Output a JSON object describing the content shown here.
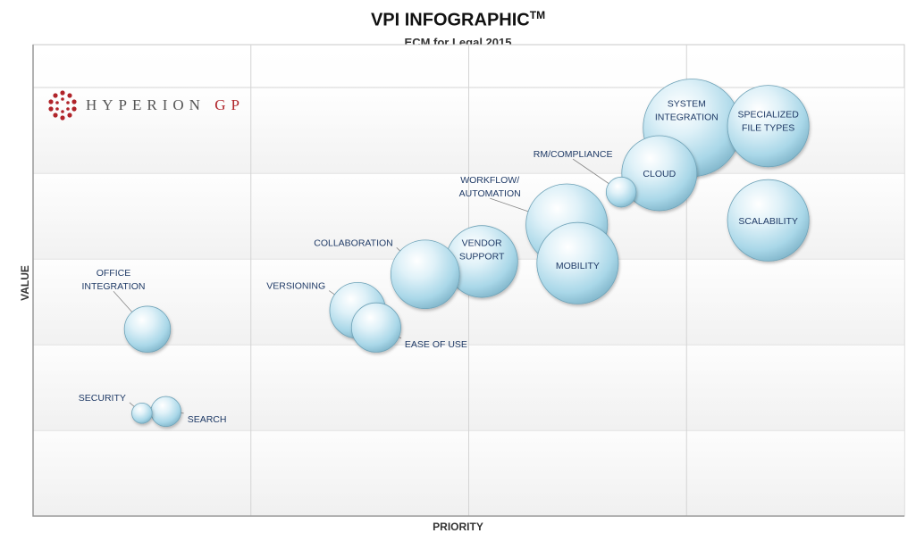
{
  "chart_data": {
    "type": "bubble",
    "title": "VPI INFOGRAPHIC",
    "title_superscript": "TM",
    "subtitle": "ECM for Legal 2015",
    "xlabel": "PRIORITY",
    "ylabel": "VALUE",
    "grid": true,
    "bubble_color": "#a9d7e8",
    "label_color": "#1f3a66",
    "logo": {
      "text_main": "HYPERION",
      "text_accent": "GP",
      "accent_color": "#b0242a"
    },
    "points": [
      {
        "label": "SECURITY",
        "x": 1.0,
        "y": 1.2,
        "size": 0.15
      },
      {
        "label": "SEARCH",
        "x": 1.22,
        "y": 1.22,
        "size": 0.3
      },
      {
        "label": "OFFICE INTEGRATION",
        "x": 1.05,
        "y": 2.18,
        "size": 0.55
      },
      {
        "label": "VERSIONING",
        "x": 2.98,
        "y": 2.4,
        "size": 0.7
      },
      {
        "label": "EASE OF USE",
        "x": 3.15,
        "y": 2.2,
        "size": 0.6
      },
      {
        "label": "COLLABORATION",
        "x": 3.6,
        "y": 2.82,
        "size": 0.9
      },
      {
        "label": "VENDOR SUPPORT",
        "x": 4.12,
        "y": 2.97,
        "size": 0.95
      },
      {
        "label": "WORKFLOW/ AUTOMATION",
        "x": 4.9,
        "y": 3.4,
        "size": 1.1
      },
      {
        "label": "MOBILITY",
        "x": 5.0,
        "y": 2.95,
        "size": 1.1
      },
      {
        "label": "RM/COMPLIANCE",
        "x": 5.4,
        "y": 3.78,
        "size": 0.3
      },
      {
        "label": "CLOUD",
        "x": 5.75,
        "y": 4.0,
        "size": 1.0
      },
      {
        "label": "SYSTEM INTEGRATION",
        "x": 6.05,
        "y": 4.53,
        "size": 1.35
      },
      {
        "label": "SPECIALIZED FILE TYPES",
        "x": 6.75,
        "y": 4.55,
        "size": 1.1
      },
      {
        "label": "SCALABILITY",
        "x": 6.75,
        "y": 3.45,
        "size": 1.1
      }
    ],
    "xlim": [
      0,
      8
    ],
    "ylim": [
      0,
      5.5
    ]
  }
}
